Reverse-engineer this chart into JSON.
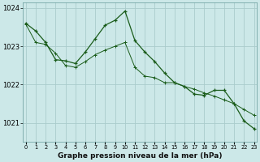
{
  "title": "Graphe pression niveau de la mer (hPa)",
  "bg_color": "#cce8e8",
  "grid_color": "#aacccc",
  "line_color": "#1a5c1a",
  "x_values": [
    0,
    1,
    2,
    3,
    4,
    5,
    6,
    7,
    8,
    9,
    10,
    11,
    12,
    13,
    14,
    15,
    16,
    17,
    18,
    19,
    20,
    21,
    22,
    23
  ],
  "line_measured": [
    1023.6,
    1023.4,
    1023.1,
    1022.65,
    1022.62,
    1022.55,
    1022.85,
    1023.2,
    1023.55,
    1023.68,
    1023.92,
    1023.15,
    1022.85,
    1022.6,
    1022.3,
    1022.05,
    1021.95,
    1021.75,
    1021.72,
    1021.85,
    1021.85,
    1021.5,
    1021.05,
    1020.85
  ],
  "line_trend": [
    1023.58,
    1023.1,
    1023.05,
    1022.82,
    1022.5,
    1022.45,
    1022.6,
    1022.78,
    1022.9,
    1023.0,
    1023.1,
    1022.45,
    1022.22,
    1022.18,
    1022.05,
    1022.05,
    1021.95,
    1021.88,
    1021.78,
    1021.7,
    1021.6,
    1021.5,
    1021.35,
    1021.2
  ],
  "ylim": [
    1020.5,
    1024.15
  ],
  "yticks": [
    1021,
    1022,
    1023,
    1024
  ],
  "xlim": [
    -0.3,
    23.3
  ],
  "figsize": [
    3.2,
    2.0
  ],
  "dpi": 100
}
